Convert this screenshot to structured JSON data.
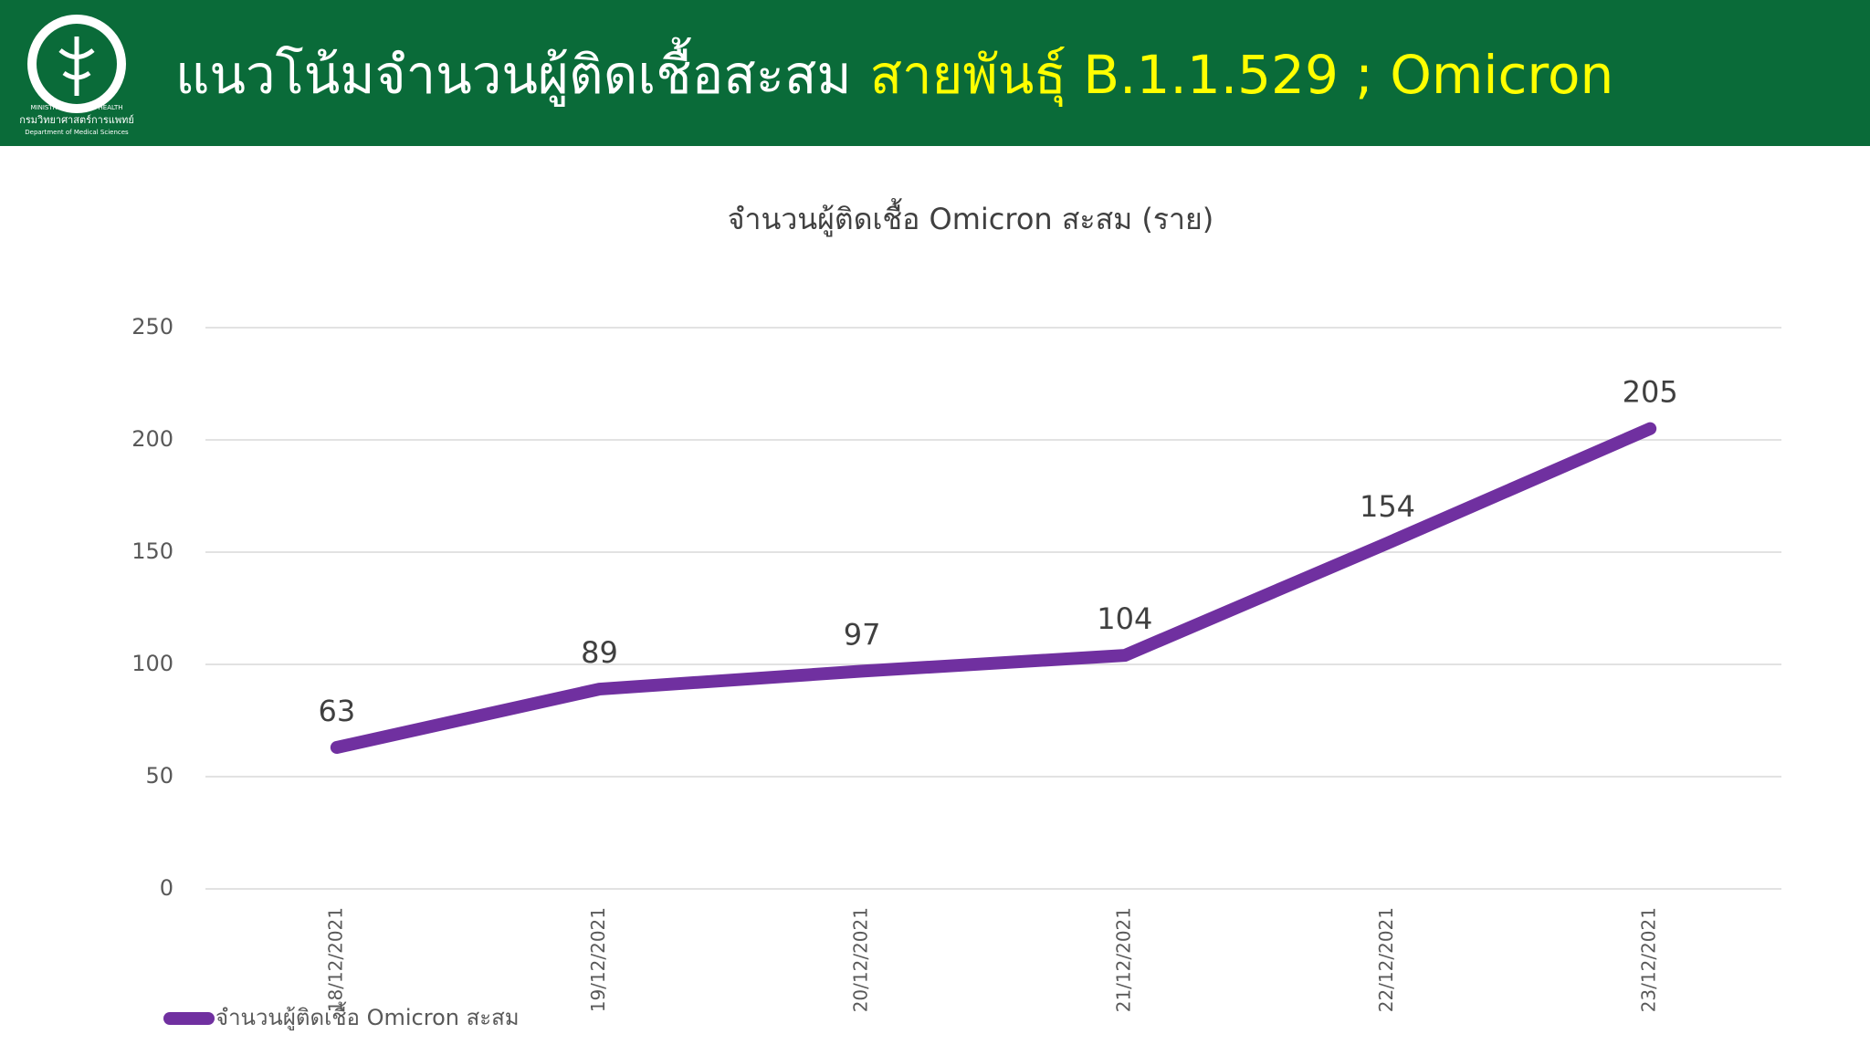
{
  "header": {
    "title": "แนวโน้มจำนวนผู้ติดเชื้อสะสม",
    "title_highlight": "สายพันธุ์ B.1.1.529 ; Omicron",
    "logo_text": "MINISTRY OF PUBLIC HEALTH",
    "logo_caption": "กรมวิทยาศาสตร์การแพทย์",
    "logo_caption_en": "Department of Medical Sciences"
  },
  "chart_data": {
    "type": "line",
    "title": "จำนวนผู้ติดเชื้อ Omicron สะสม (ราย)",
    "categories": [
      "18/12/2021",
      "19/12/2021",
      "20/12/2021",
      "21/12/2021",
      "22/12/2021",
      "23/12/2021"
    ],
    "series": [
      {
        "name": "จำนวนผู้ติดเชื้อ Omicron สะสม",
        "color": "#7030a0",
        "values": [
          63,
          89,
          97,
          104,
          154,
          205
        ]
      }
    ],
    "ylim": [
      0,
      250
    ],
    "yticks": [
      0,
      50,
      100,
      150,
      200,
      250
    ],
    "grid": true,
    "legend": "bottom-left",
    "data_labels": true
  }
}
